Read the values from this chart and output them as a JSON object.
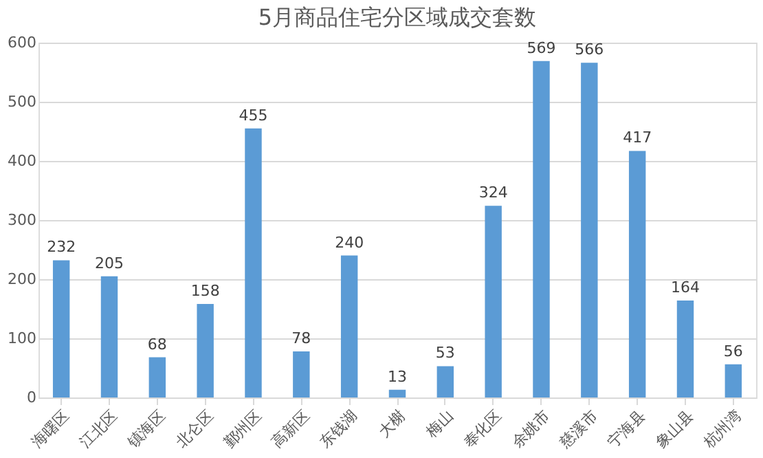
{
  "chart_data": {
    "type": "bar",
    "title": "5月商品住宅分区域成交套数",
    "categories": [
      "海曙区",
      "江北区",
      "镇海区",
      "北仑区",
      "鄞州区",
      "高新区",
      "东钱湖",
      "大榭",
      "梅山",
      "奉化区",
      "余姚市",
      "慈溪市",
      "宁海县",
      "象山县",
      "杭州湾"
    ],
    "values": [
      232,
      205,
      68,
      158,
      455,
      78,
      240,
      13,
      53,
      324,
      569,
      566,
      417,
      164,
      56
    ],
    "color": "#5b9bd5",
    "ylim": [
      0,
      600
    ],
    "yticks": [
      0,
      100,
      200,
      300,
      400,
      500,
      600
    ],
    "grid": "y",
    "data_labels": true
  }
}
